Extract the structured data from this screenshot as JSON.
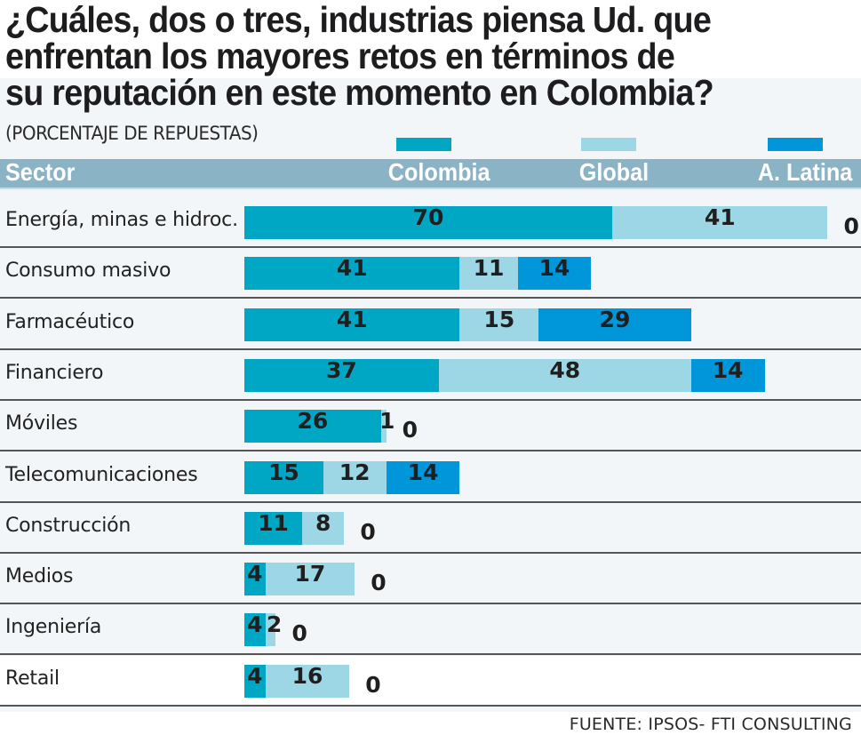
{
  "title_lines": [
    "¿Cuáles, dos o tres, industrias piensa Ud. que",
    "enfrentan los mayores retos en términos de",
    "su reputación en este momento en Colombia?"
  ],
  "subtitle": "(PORCENTAJE DE REPUESTAS)",
  "source": "FUENTE: IPSOS- FTI  CONSULTING",
  "colors": {
    "colombia": "#00a7c4",
    "global": "#9dd7e5",
    "latina": "#0096da",
    "header_bg": "#8ab3c5"
  },
  "chart_data": {
    "type": "bar",
    "orientation": "horizontal",
    "stacked": true,
    "title": "¿Cuáles, dos o tres, industrias piensa Ud. que enfrentan los mayores retos en términos de su reputación en este momento en Colombia?",
    "subtitle": "(PORCENTAJE DE REPUESTAS)",
    "category_header": "Sector",
    "xlabel": "",
    "ylabel": "Sector",
    "legend_position": "top",
    "categories": [
      "Energía, minas e hidroc.",
      "Consumo masivo",
      "Farmacéutico",
      "Financiero",
      "Móviles",
      "Telecomunicaciones",
      "Construcción",
      "Medios",
      "Ingeniería",
      "Retail"
    ],
    "series": [
      {
        "name": "Colombia",
        "color": "#00a7c4",
        "values": [
          70,
          41,
          41,
          37,
          26,
          15,
          11,
          4,
          4,
          4
        ]
      },
      {
        "name": "Global",
        "color": "#9dd7e5",
        "values": [
          41,
          11,
          15,
          48,
          1,
          12,
          8,
          17,
          2,
          16
        ]
      },
      {
        "name": "A. Latina",
        "color": "#0096da",
        "values": [
          0,
          14,
          29,
          14,
          0,
          14,
          0,
          0,
          0,
          0
        ]
      }
    ],
    "source": "FUENTE: IPSOS- FTI  CONSULTING"
  }
}
